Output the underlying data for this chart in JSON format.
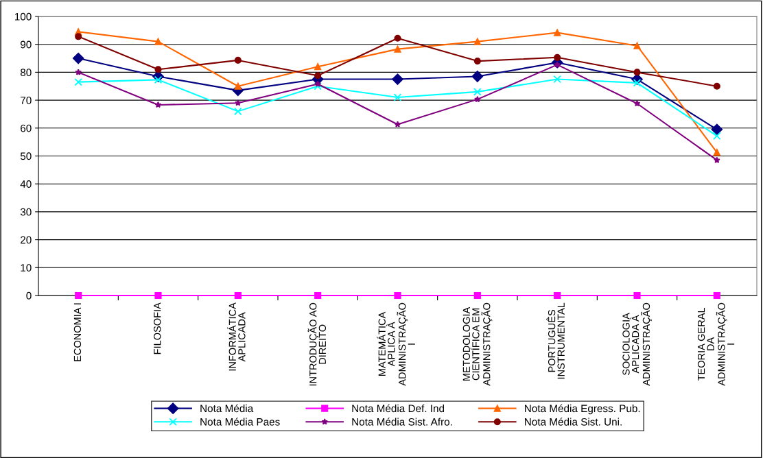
{
  "chart_data": {
    "type": "line",
    "categories": [
      "ECONOMIA I",
      "FILOSOFIA",
      "INFORMÁTICA\nAPLICADA",
      "INTRODUÇÃO AO\nDIREITO",
      "MATEMÁTICA\nAPLICA À\nADMINISTRAÇÃO\nI",
      "METODOLOGIA\nCIENTÍFICA EM\nADMINISTRAÇÃO",
      "PORTUGUÊS\nINSTRUMENTAL",
      "SOCIOLOGIA\nAPLICADA À\nADMINISTRAÇÃO",
      "TEORIA GERAL\nDA\nADMINISTRAÇÃO\nI"
    ],
    "series": [
      {
        "name": "Nota Média",
        "color": "#000080",
        "marker": "diamond",
        "values": [
          85,
          78.5,
          73.5,
          77.5,
          77.5,
          78.5,
          83.5,
          77.5,
          59.5
        ]
      },
      {
        "name": "Nota Média Def. Ind",
        "color": "#ff00ff",
        "marker": "square",
        "values": [
          0,
          0,
          0,
          0,
          0,
          0,
          0,
          0,
          0
        ]
      },
      {
        "name": "Nota Média Egress. Pub.",
        "color": "#ff6600",
        "marker": "triangle",
        "values": [
          94.5,
          91,
          75,
          82,
          88.3,
          91,
          94.2,
          89.5,
          51.3
        ]
      },
      {
        "name": "Nota Média Paes",
        "color": "#00ffff",
        "marker": "cross",
        "values": [
          76.5,
          77.3,
          66,
          75,
          71,
          73,
          77.5,
          76.2,
          57.2
        ]
      },
      {
        "name": "Nota Média Sist. Afro.",
        "color": "#800080",
        "marker": "star",
        "values": [
          80,
          68.3,
          69,
          75.8,
          61.3,
          70.3,
          82.7,
          68.8,
          48.5
        ]
      },
      {
        "name": "Nota Média Sist. Uni.",
        "color": "#800000",
        "marker": "circle",
        "values": [
          92.8,
          81,
          84.3,
          78.8,
          92.2,
          84,
          85.3,
          80,
          75
        ]
      }
    ],
    "ylim": [
      0,
      100
    ],
    "yticks": [
      0,
      10,
      20,
      30,
      40,
      50,
      60,
      70,
      80,
      90,
      100
    ],
    "grid": "y",
    "legend": "bottom",
    "line_style": "solid"
  }
}
